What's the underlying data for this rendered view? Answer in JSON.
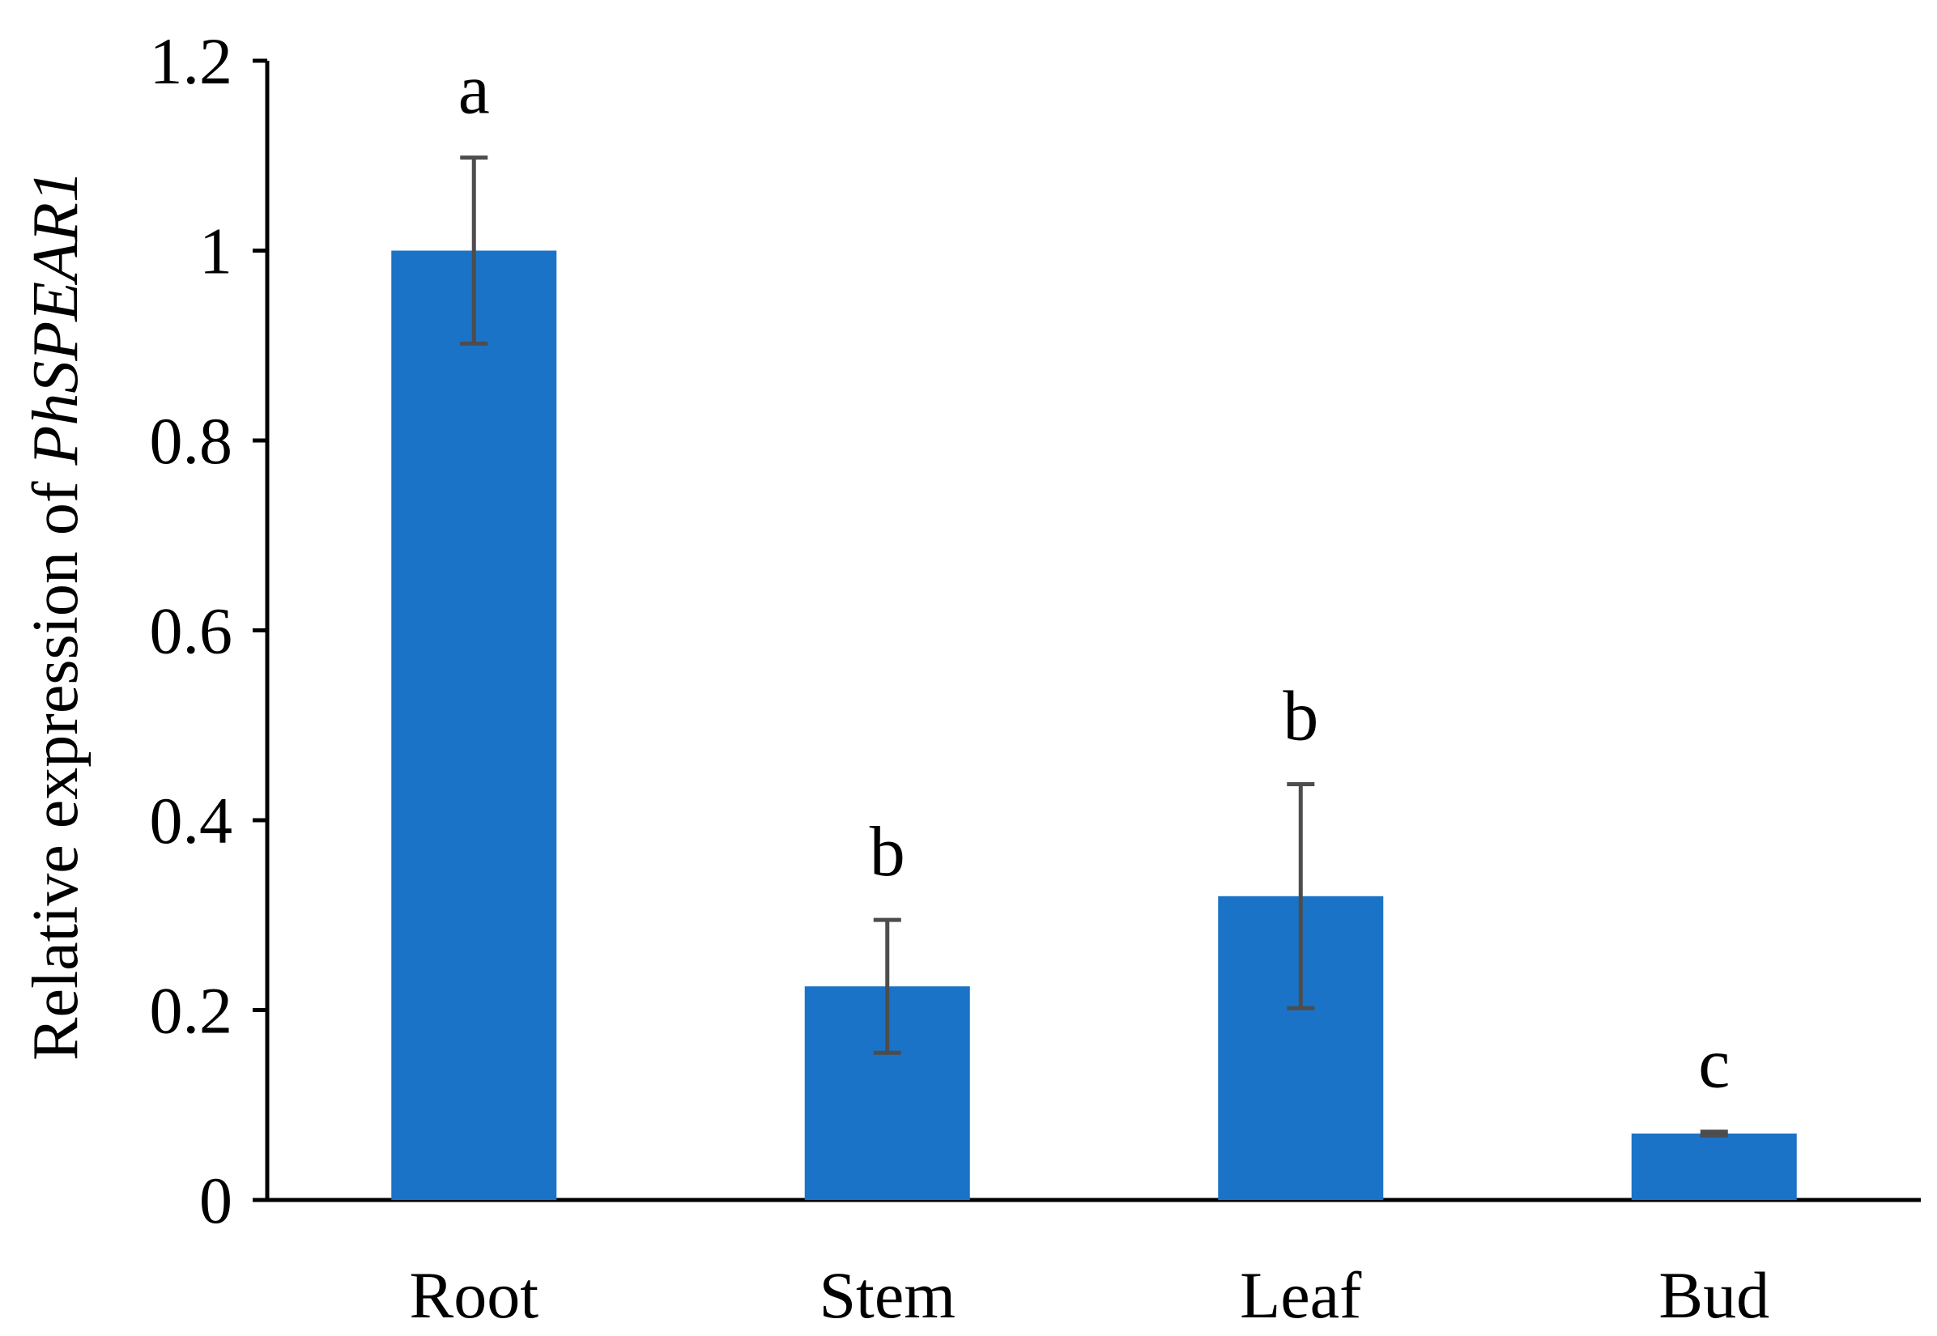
{
  "chart_data": {
    "type": "bar",
    "title": "",
    "xlabel": "",
    "ylabel": "Relative expression of ",
    "ylabel_gene": "PhSPEAR1",
    "ylim": [
      0,
      1.2
    ],
    "yticks": [
      0,
      0.2,
      0.4,
      0.6,
      0.8,
      1,
      1.2
    ],
    "ytick_labels": [
      "0",
      "0.2",
      "0.4",
      "0.6",
      "0.8",
      "1",
      "1.2"
    ],
    "categories": [
      "Root",
      "Stem",
      "Leaf",
      "Bud"
    ],
    "values": [
      1.0,
      0.225,
      0.32,
      0.07
    ],
    "errors": [
      0.098,
      0.07,
      0.118,
      0.002
    ],
    "significance": [
      "a",
      "b",
      "b",
      "c"
    ],
    "bar_color": "#1a73c7",
    "error_bar_color": "#4d4d4d",
    "axis_color": "#000000",
    "grid": false
  }
}
